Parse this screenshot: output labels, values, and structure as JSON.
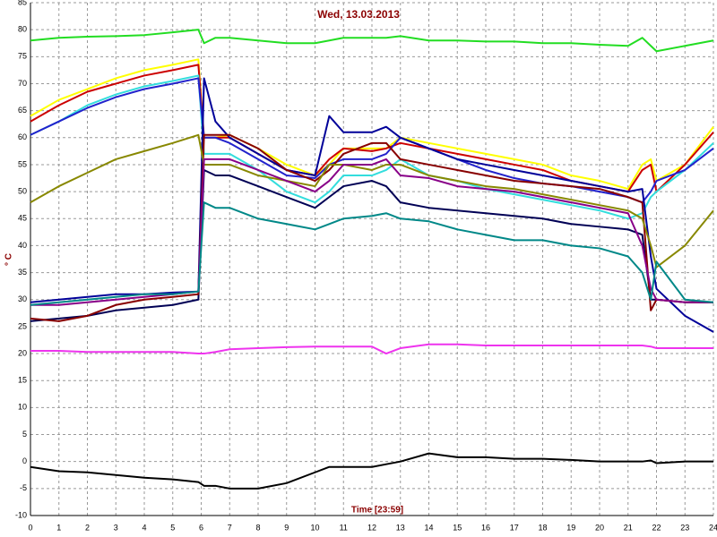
{
  "chart_data": {
    "type": "line",
    "title": "Wed, 13.03.2013",
    "x_label": "Time [23:59]",
    "y_label": "° C",
    "x": [
      0,
      1,
      2,
      3,
      4,
      5,
      5.9,
      6.1,
      6.5,
      7,
      8,
      9,
      10,
      10.5,
      11,
      12,
      12.5,
      13,
      14,
      15,
      16,
      17,
      18,
      19,
      20,
      21,
      21.5,
      21.8,
      22,
      23,
      24
    ],
    "xlim": [
      0,
      24
    ],
    "xticks": [
      0,
      1,
      2,
      3,
      4,
      5,
      6,
      7,
      8,
      9,
      10,
      11,
      12,
      13,
      14,
      15,
      16,
      17,
      18,
      19,
      20,
      21,
      22,
      23,
      24
    ],
    "ylim": [
      -10,
      85
    ],
    "yticks": [
      -10,
      -5,
      0,
      5,
      10,
      15,
      20,
      25,
      30,
      35,
      40,
      45,
      50,
      55,
      60,
      65,
      70,
      75,
      80,
      85
    ],
    "grid": true,
    "series": [
      {
        "color": "#22dd22",
        "values": [
          78,
          78.5,
          78.7,
          78.8,
          79,
          79.5,
          80,
          77.5,
          78.5,
          78.5,
          78,
          77.5,
          77.5,
          78,
          78.5,
          78.5,
          78.5,
          78.8,
          78,
          78,
          77.8,
          77.8,
          77.5,
          77.5,
          77.2,
          77,
          78.5,
          77,
          76,
          77,
          78
        ]
      },
      {
        "color": "#ee33ee",
        "values": [
          20.5,
          20.5,
          20.3,
          20.3,
          20.3,
          20.3,
          20,
          20,
          20.3,
          20.8,
          21,
          21.2,
          21.3,
          21.3,
          21.3,
          21.3,
          20,
          21,
          21.7,
          21.7,
          21.5,
          21.5,
          21.5,
          21.5,
          21.5,
          21.5,
          21.5,
          21.3,
          21,
          21,
          21
        ]
      },
      {
        "color": "#000000",
        "values": [
          -1,
          -1.8,
          -2,
          -2.5,
          -3,
          -3.3,
          -3.8,
          -4.5,
          -4.5,
          -5,
          -5,
          -4,
          -2,
          -1,
          -1,
          -1,
          -0.5,
          0,
          1.5,
          0.8,
          0.8,
          0.5,
          0.5,
          0.3,
          0,
          0,
          0,
          0.2,
          -0.3,
          0,
          0
        ]
      },
      {
        "color": "#ffff00",
        "values": [
          64,
          67,
          69,
          71,
          72.5,
          73.5,
          74.5,
          60,
          60,
          60.5,
          58,
          55,
          53,
          55,
          58,
          58,
          58,
          60,
          59,
          58,
          57,
          56,
          55,
          53,
          52,
          50.5,
          55,
          56,
          52,
          55,
          62
        ]
      },
      {
        "color": "#cc0000",
        "values": [
          63,
          66,
          68.5,
          70,
          71.5,
          72.5,
          73.5,
          60,
          60,
          60,
          57,
          54,
          53,
          56,
          58,
          57.5,
          58,
          59,
          58,
          57,
          56,
          55,
          54,
          52,
          51,
          50,
          54,
          55,
          50,
          55,
          61
        ]
      },
      {
        "color": "#33dddd",
        "values": [
          60.5,
          63,
          66,
          68,
          69.5,
          70.5,
          71.5,
          57,
          57,
          57,
          54,
          50,
          48,
          50,
          53,
          53,
          54,
          56,
          53,
          52,
          50.5,
          49.5,
          48.5,
          47.5,
          46.5,
          45,
          46,
          49,
          50,
          54,
          59
        ]
      },
      {
        "color": "#2222cc",
        "values": [
          60.5,
          63,
          65.5,
          67.5,
          69,
          70,
          71,
          60,
          60,
          59,
          56,
          53,
          52.5,
          55,
          56,
          56,
          57,
          60,
          58,
          56,
          54,
          52.5,
          51.5,
          51,
          50,
          49,
          48,
          50,
          52,
          54,
          58
        ]
      },
      {
        "color": "#000099",
        "values": [
          29.5,
          30,
          30.5,
          31,
          31,
          31.3,
          31.5,
          71,
          63,
          60,
          57,
          54,
          53,
          64,
          61,
          61,
          62,
          60,
          58,
          56,
          55,
          54,
          53,
          52,
          51,
          50,
          50.5,
          38,
          32,
          27,
          24
        ]
      },
      {
        "color": "#000055",
        "values": [
          26,
          26.5,
          27,
          28,
          28.5,
          29,
          30,
          54,
          53,
          53,
          51,
          49,
          47,
          49,
          51,
          52,
          51,
          48,
          47,
          46.5,
          46,
          45.5,
          45,
          44,
          43.5,
          43,
          42,
          30,
          30,
          29.5,
          29.5
        ]
      },
      {
        "color": "#880000",
        "values": [
          26.5,
          26,
          27,
          29,
          30,
          30.5,
          31,
          60.5,
          60.5,
          60.5,
          58,
          54,
          52,
          54,
          57,
          59,
          59,
          56,
          55,
          54,
          53,
          52,
          51.5,
          51,
          50.5,
          49,
          48,
          28,
          30,
          29.5,
          29.5
        ]
      },
      {
        "color": "#888800",
        "values": [
          48,
          51,
          53.5,
          56,
          57.5,
          59,
          60.5,
          55,
          55,
          55,
          53,
          52,
          51,
          55,
          55,
          54,
          55,
          55,
          53,
          52,
          51,
          50.5,
          49.5,
          48.5,
          47.5,
          46.5,
          45,
          40,
          36,
          40,
          46.5
        ]
      },
      {
        "color": "#880088",
        "values": [
          29,
          29,
          29.5,
          30,
          30.5,
          31,
          31.5,
          56,
          56,
          56,
          54,
          52,
          50,
          52,
          55,
          55,
          56,
          53,
          52.5,
          51,
          50.5,
          50,
          49,
          48,
          47,
          46,
          40,
          32,
          30,
          29.5,
          29.5
        ]
      },
      {
        "color": "#008888",
        "values": [
          29,
          29.5,
          30,
          30.5,
          31,
          31,
          31.5,
          48,
          47,
          47,
          45,
          44,
          43,
          44,
          45,
          45.5,
          46,
          45,
          44.5,
          43,
          42,
          41,
          41,
          40,
          39.5,
          38,
          35,
          30,
          37,
          30,
          29.5
        ]
      }
    ]
  }
}
